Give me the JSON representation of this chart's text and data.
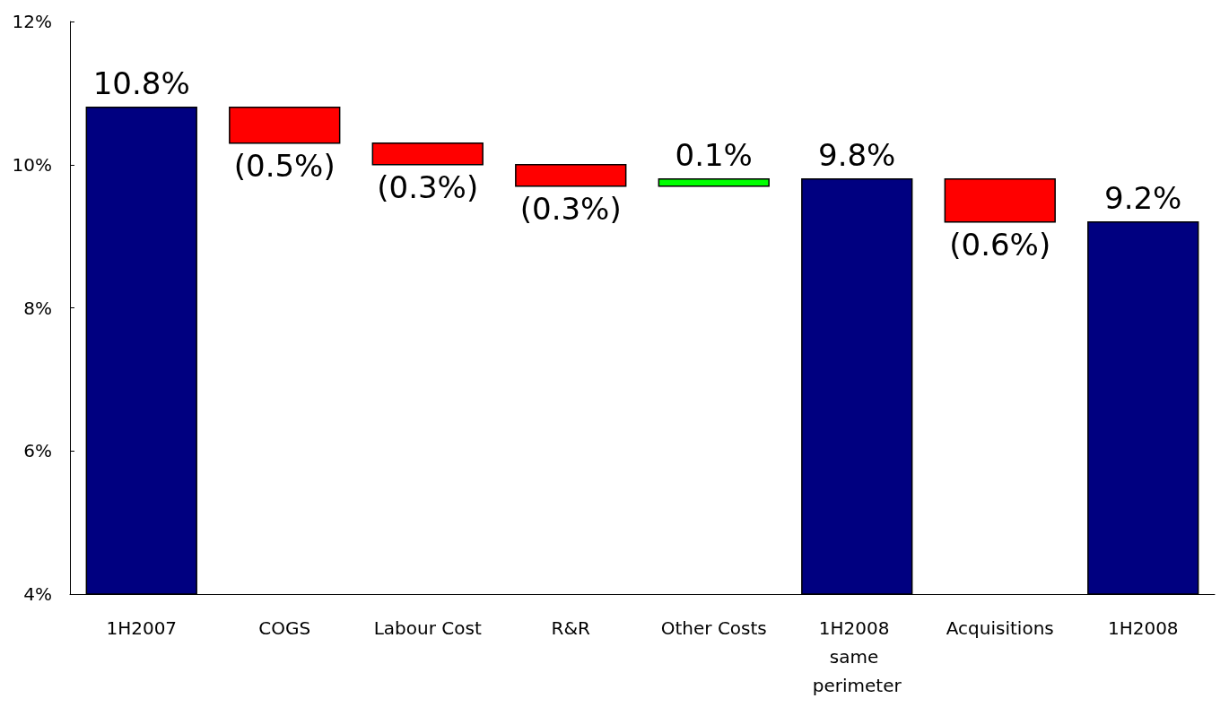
{
  "chart_data": {
    "type": "bar",
    "categories": [
      "1H2007",
      "COGS",
      "Labour Cost",
      "R&R",
      "Other Costs",
      "1H2008 same perimeter",
      "Acquisitions",
      "1H2008"
    ],
    "values": [
      10.8,
      -0.5,
      -0.3,
      -0.3,
      0.1,
      9.8,
      -0.6,
      9.2
    ],
    "base": [
      null,
      10.8,
      10.3,
      10.0,
      9.7,
      null,
      9.8,
      null
    ],
    "colors": [
      "#000080",
      "#ff0000",
      "#ff0000",
      "#ff0000",
      "#00ff00",
      "#000080",
      "#ff0000",
      "#000080"
    ],
    "value_labels": [
      "10.8%",
      "(0.5%)",
      "(0.3%)",
      "(0.3%)",
      "0.1%",
      "9.8%",
      "(0.6%)",
      "9.2%"
    ],
    "ylim": [
      4,
      12
    ],
    "yticks": [
      {
        "value": 4,
        "label": "4%"
      },
      {
        "value": 6,
        "label": "6%"
      },
      {
        "value": 8,
        "label": "8%"
      },
      {
        "value": 10,
        "label": "10%"
      },
      {
        "value": 12,
        "label": "12%"
      }
    ],
    "grid": false
  }
}
